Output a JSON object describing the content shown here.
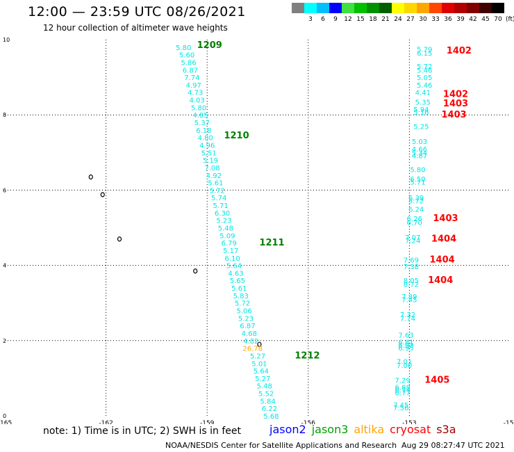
{
  "header": {
    "title": "12:00 — 23:59 UTC 08/26/2021",
    "subtitle": "12 hour collection of altimeter wave heights"
  },
  "color_scale": {
    "unit_label": "(ft)",
    "bins": [
      {
        "label": "",
        "color": "#808080"
      },
      {
        "label": "3",
        "color": "#00ffff"
      },
      {
        "label": "6",
        "color": "#00bfff"
      },
      {
        "label": "9",
        "color": "#0000ff"
      },
      {
        "label": "12",
        "color": "#40e040"
      },
      {
        "label": "15",
        "color": "#00c000"
      },
      {
        "label": "18",
        "color": "#009000"
      },
      {
        "label": "21",
        "color": "#006000"
      },
      {
        "label": "24",
        "color": "#ffff00"
      },
      {
        "label": "27",
        "color": "#ffd700"
      },
      {
        "label": "30",
        "color": "#ffa500"
      },
      {
        "label": "33",
        "color": "#ff4500"
      },
      {
        "label": "36",
        "color": "#e00000"
      },
      {
        "label": "39",
        "color": "#b00000"
      },
      {
        "label": "42",
        "color": "#800000"
      },
      {
        "label": "45",
        "color": "#400000"
      },
      {
        "label": "70",
        "color": "#000000"
      }
    ]
  },
  "axes": {
    "lon_range": [
      -165,
      -150
    ],
    "lat_range": [
      0,
      10
    ],
    "x_ticks": [
      "-165",
      "-162",
      "-159",
      "-156",
      "-153",
      "-150"
    ],
    "y_ticks": [
      "0",
      "2",
      "4",
      "6",
      "8",
      "10"
    ]
  },
  "colors": {
    "cyan": "#00e5e5",
    "orange": "#ffa500",
    "green": "#008000",
    "red": "#ff0000",
    "blue": "#0000ff",
    "jason3": "#00a000",
    "s3a": "#a00000"
  },
  "track_west": {
    "observations": [
      {
        "lat": 9.8,
        "lon": -159.7,
        "v": "5.80",
        "c": "cyan"
      },
      {
        "lat": 9.6,
        "lon": -159.6,
        "v": "5.60",
        "c": "cyan"
      },
      {
        "lat": 9.4,
        "lon": -159.55,
        "v": "5.86",
        "c": "cyan"
      },
      {
        "lat": 9.2,
        "lon": -159.5,
        "v": "6.87",
        "c": "cyan"
      },
      {
        "lat": 9.0,
        "lon": -159.45,
        "v": "7.74",
        "c": "cyan"
      },
      {
        "lat": 8.8,
        "lon": -159.4,
        "v": "4.97",
        "c": "cyan"
      },
      {
        "lat": 8.6,
        "lon": -159.35,
        "v": "4.73",
        "c": "cyan"
      },
      {
        "lat": 8.4,
        "lon": -159.3,
        "v": "4.03",
        "c": "cyan"
      },
      {
        "lat": 8.2,
        "lon": -159.25,
        "v": "5.80",
        "c": "cyan"
      },
      {
        "lat": 8.0,
        "lon": -159.2,
        "v": "4.85",
        "c": "cyan"
      },
      {
        "lat": 7.8,
        "lon": -159.15,
        "v": "5.37",
        "c": "cyan"
      },
      {
        "lat": 7.6,
        "lon": -159.1,
        "v": "6.18",
        "c": "cyan"
      },
      {
        "lat": 7.4,
        "lon": -159.05,
        "v": "4.80",
        "c": "cyan"
      },
      {
        "lat": 7.2,
        "lon": -159.0,
        "v": "4.96",
        "c": "cyan"
      },
      {
        "lat": 7.0,
        "lon": -158.95,
        "v": "5.51",
        "c": "cyan"
      },
      {
        "lat": 6.8,
        "lon": -158.9,
        "v": "5.19",
        "c": "cyan"
      },
      {
        "lat": 6.6,
        "lon": -158.85,
        "v": "7.08",
        "c": "cyan"
      },
      {
        "lat": 6.4,
        "lon": -158.8,
        "v": "4.92",
        "c": "cyan"
      },
      {
        "lat": 6.2,
        "lon": -158.75,
        "v": "5.61",
        "c": "cyan"
      },
      {
        "lat": 6.0,
        "lon": -158.7,
        "v": "5.72",
        "c": "cyan"
      },
      {
        "lat": 5.8,
        "lon": -158.65,
        "v": "5.74",
        "c": "cyan"
      },
      {
        "lat": 5.6,
        "lon": -158.6,
        "v": "5.71",
        "c": "cyan"
      },
      {
        "lat": 5.4,
        "lon": -158.55,
        "v": "6.30",
        "c": "cyan"
      },
      {
        "lat": 5.2,
        "lon": -158.5,
        "v": "5.23",
        "c": "cyan"
      },
      {
        "lat": 5.0,
        "lon": -158.45,
        "v": "5.48",
        "c": "cyan"
      },
      {
        "lat": 4.8,
        "lon": -158.4,
        "v": "5.09",
        "c": "cyan"
      },
      {
        "lat": 4.6,
        "lon": -158.35,
        "v": "6.79",
        "c": "cyan"
      },
      {
        "lat": 4.4,
        "lon": -158.3,
        "v": "5.17",
        "c": "cyan"
      },
      {
        "lat": 4.2,
        "lon": -158.25,
        "v": "6.10",
        "c": "cyan"
      },
      {
        "lat": 4.0,
        "lon": -158.2,
        "v": "5.64",
        "c": "cyan"
      },
      {
        "lat": 3.8,
        "lon": -158.15,
        "v": "4.63",
        "c": "cyan"
      },
      {
        "lat": 3.6,
        "lon": -158.1,
        "v": "5.65",
        "c": "cyan"
      },
      {
        "lat": 3.4,
        "lon": -158.05,
        "v": "5.61",
        "c": "cyan"
      },
      {
        "lat": 3.2,
        "lon": -158.0,
        "v": "5.83",
        "c": "cyan"
      },
      {
        "lat": 3.0,
        "lon": -157.95,
        "v": "5.72",
        "c": "cyan"
      },
      {
        "lat": 2.8,
        "lon": -157.9,
        "v": "5.06",
        "c": "cyan"
      },
      {
        "lat": 2.6,
        "lon": -157.85,
        "v": "5.23",
        "c": "cyan"
      },
      {
        "lat": 2.4,
        "lon": -157.8,
        "v": "6.87",
        "c": "cyan"
      },
      {
        "lat": 2.2,
        "lon": -157.75,
        "v": "4.68",
        "c": "cyan"
      },
      {
        "lat": 2.0,
        "lon": -157.7,
        "v": "4.82",
        "c": "cyan"
      },
      {
        "lat": 1.8,
        "lon": -157.65,
        "v": "26.78",
        "c": "orange"
      },
      {
        "lat": 1.6,
        "lon": -157.5,
        "v": "5.27",
        "c": "cyan"
      },
      {
        "lat": 1.4,
        "lon": -157.45,
        "v": "5.01",
        "c": "cyan"
      },
      {
        "lat": 1.2,
        "lon": -157.4,
        "v": "5.64",
        "c": "cyan"
      },
      {
        "lat": 1.0,
        "lon": -157.35,
        "v": "5.27",
        "c": "cyan"
      },
      {
        "lat": 0.8,
        "lon": -157.3,
        "v": "5.48",
        "c": "cyan"
      },
      {
        "lat": 0.6,
        "lon": -157.25,
        "v": "5.52",
        "c": "cyan"
      },
      {
        "lat": 0.4,
        "lon": -157.2,
        "v": "5.84",
        "c": "cyan"
      },
      {
        "lat": 0.2,
        "lon": -157.15,
        "v": "6.22",
        "c": "cyan"
      },
      {
        "lat": 0.0,
        "lon": -157.1,
        "v": "5.68",
        "c": "cyan"
      }
    ],
    "pass_labels": [
      {
        "lat": 9.85,
        "lon": -159.3,
        "t": "1209",
        "c": "green"
      },
      {
        "lat": 7.45,
        "lon": -158.5,
        "t": "1210",
        "c": "green"
      },
      {
        "lat": 4.6,
        "lon": -157.45,
        "t": "1211",
        "c": "green"
      },
      {
        "lat": 1.6,
        "lon": -156.4,
        "t": "1212",
        "c": "green"
      }
    ]
  },
  "track_east": {
    "observations": [
      {
        "lat": 9.75,
        "lon": -152.55,
        "v": "5.79",
        "c": "cyan"
      },
      {
        "lat": 9.65,
        "lon": -152.55,
        "v": "6.15",
        "c": "cyan"
      },
      {
        "lat": 9.3,
        "lon": -152.55,
        "v": "5.72",
        "c": "cyan"
      },
      {
        "lat": 9.2,
        "lon": -152.55,
        "v": "5.46",
        "c": "cyan"
      },
      {
        "lat": 9.0,
        "lon": -152.55,
        "v": "5.05",
        "c": "cyan"
      },
      {
        "lat": 8.8,
        "lon": -152.55,
        "v": "5.46",
        "c": "cyan"
      },
      {
        "lat": 8.6,
        "lon": -152.6,
        "v": "4.41",
        "c": "cyan"
      },
      {
        "lat": 8.35,
        "lon": -152.6,
        "v": "5.35",
        "c": "cyan"
      },
      {
        "lat": 8.15,
        "lon": -152.65,
        "v": "5.94",
        "c": "cyan"
      },
      {
        "lat": 8.08,
        "lon": -152.65,
        "v": "5.16",
        "c": "cyan"
      },
      {
        "lat": 7.7,
        "lon": -152.65,
        "v": "5.25",
        "c": "cyan"
      },
      {
        "lat": 7.3,
        "lon": -152.7,
        "v": "5.03",
        "c": "cyan"
      },
      {
        "lat": 7.1,
        "lon": -152.7,
        "v": "4.66",
        "c": "cyan"
      },
      {
        "lat": 7.0,
        "lon": -152.7,
        "v": "5.34",
        "c": "cyan"
      },
      {
        "lat": 6.92,
        "lon": -152.7,
        "v": "4.87",
        "c": "cyan"
      },
      {
        "lat": 6.55,
        "lon": -152.75,
        "v": "5.80",
        "c": "cyan"
      },
      {
        "lat": 6.3,
        "lon": -152.75,
        "v": "6.50",
        "c": "cyan"
      },
      {
        "lat": 6.22,
        "lon": -152.75,
        "v": "5.71",
        "c": "cyan"
      },
      {
        "lat": 5.8,
        "lon": -152.8,
        "v": "6.39",
        "c": "cyan"
      },
      {
        "lat": 5.72,
        "lon": -152.8,
        "v": "5.72",
        "c": "cyan"
      },
      {
        "lat": 5.5,
        "lon": -152.8,
        "v": "6.24",
        "c": "cyan"
      },
      {
        "lat": 5.25,
        "lon": -152.85,
        "v": "6.26",
        "c": "cyan"
      },
      {
        "lat": 5.15,
        "lon": -152.85,
        "v": "6.70",
        "c": "cyan"
      },
      {
        "lat": 4.75,
        "lon": -152.9,
        "v": "7.07",
        "c": "cyan"
      },
      {
        "lat": 4.67,
        "lon": -152.9,
        "v": "7.24",
        "c": "cyan"
      },
      {
        "lat": 4.15,
        "lon": -152.95,
        "v": "7.69",
        "c": "cyan"
      },
      {
        "lat": 3.97,
        "lon": -152.95,
        "v": "7.38",
        "c": "cyan"
      },
      {
        "lat": 3.6,
        "lon": -152.95,
        "v": "8.05",
        "c": "cyan"
      },
      {
        "lat": 3.5,
        "lon": -152.95,
        "v": "8.72",
        "c": "cyan"
      },
      {
        "lat": 3.18,
        "lon": -153.0,
        "v": "7.89",
        "c": "cyan"
      },
      {
        "lat": 3.1,
        "lon": -153.0,
        "v": "7.45",
        "c": "cyan"
      },
      {
        "lat": 2.7,
        "lon": -153.05,
        "v": "7.32",
        "c": "cyan"
      },
      {
        "lat": 2.6,
        "lon": -153.05,
        "v": "7.74",
        "c": "cyan"
      },
      {
        "lat": 2.15,
        "lon": -153.1,
        "v": "7.63",
        "c": "cyan"
      },
      {
        "lat": 1.97,
        "lon": -153.1,
        "v": "6.81",
        "c": "cyan"
      },
      {
        "lat": 1.89,
        "lon": -153.1,
        "v": "6.93",
        "c": "cyan"
      },
      {
        "lat": 1.81,
        "lon": -153.1,
        "v": "6.95",
        "c": "cyan"
      },
      {
        "lat": 1.45,
        "lon": -153.15,
        "v": "7.01",
        "c": "cyan"
      },
      {
        "lat": 1.35,
        "lon": -153.15,
        "v": "7.00",
        "c": "cyan"
      },
      {
        "lat": 0.95,
        "lon": -153.2,
        "v": "7.29",
        "c": "cyan"
      },
      {
        "lat": 0.77,
        "lon": -153.2,
        "v": "6.88",
        "c": "cyan"
      },
      {
        "lat": 0.69,
        "lon": -153.2,
        "v": "6.74",
        "c": "cyan"
      },
      {
        "lat": 0.62,
        "lon": -153.2,
        "v": "6.77",
        "c": "cyan"
      },
      {
        "lat": 0.3,
        "lon": -153.25,
        "v": "7.45",
        "c": "cyan"
      },
      {
        "lat": 0.22,
        "lon": -153.25,
        "v": "7.56",
        "c": "cyan"
      }
    ],
    "pass_labels": [
      {
        "lat": 9.7,
        "lon": -151.9,
        "t": "1402",
        "c": "red"
      },
      {
        "lat": 8.55,
        "lon": -152.0,
        "t": "1402",
        "c": "red"
      },
      {
        "lat": 8.3,
        "lon": -152.0,
        "t": "1403",
        "c": "red"
      },
      {
        "lat": 8.0,
        "lon": -152.05,
        "t": "1403",
        "c": "red"
      },
      {
        "lat": 5.25,
        "lon": -152.3,
        "t": "1403",
        "c": "red"
      },
      {
        "lat": 4.7,
        "lon": -152.35,
        "t": "1404",
        "c": "red"
      },
      {
        "lat": 4.15,
        "lon": -152.4,
        "t": "1404",
        "c": "red"
      },
      {
        "lat": 3.6,
        "lon": -152.45,
        "t": "1404",
        "c": "red"
      },
      {
        "lat": 0.95,
        "lon": -152.55,
        "t": "1405",
        "c": "red"
      }
    ]
  },
  "islands": [
    {
      "name": "island-a",
      "lat": 6.35,
      "lon": -162.45
    },
    {
      "name": "island-b",
      "lat": 5.88,
      "lon": -162.1
    },
    {
      "name": "island-c",
      "lat": 4.7,
      "lon": -161.6
    },
    {
      "name": "island-d",
      "lat": 3.85,
      "lon": -159.35
    },
    {
      "name": "island-e",
      "lat": 1.9,
      "lon": -157.45
    }
  ],
  "legend": {
    "note": "note:  1) Time is in UTC;  2) SWH is in feet",
    "satellites": [
      {
        "label": "jason2",
        "c": "blue"
      },
      {
        "label": "jason3",
        "c": "jason3"
      },
      {
        "label": "altika",
        "c": "orange"
      },
      {
        "label": "cryosat",
        "c": "red"
      },
      {
        "label": "s3a",
        "c": "s3a"
      }
    ]
  },
  "footer": {
    "center": "NOAA/NESDIS Center for Satellite Applications and Research",
    "timestamp": "Aug 29 08:27:47 UTC 2021"
  }
}
